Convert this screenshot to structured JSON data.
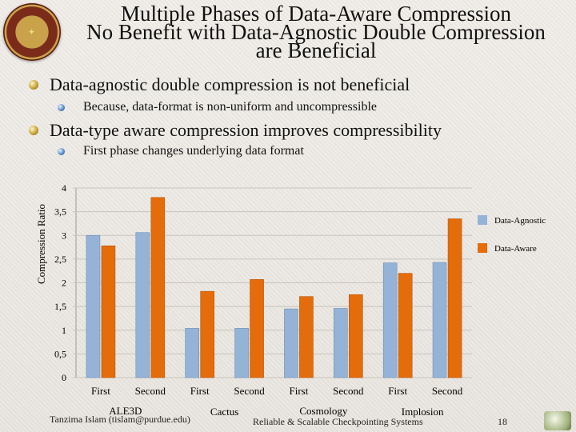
{
  "slide": {
    "title_lines": [
      "Multiple Phases of Data-Aware Compression",
      "No Benefit with Data-Agnostic Double Compression",
      "are Beneficial"
    ],
    "bullets": [
      {
        "text": "Data-agnostic double compression is not beneficial",
        "sub": "Because, data-format is non-uniform and uncompressible"
      },
      {
        "text": "Data-type aware compression improves compressibility",
        "sub": "First phase changes underlying data format"
      }
    ],
    "footer_author": "Tanzima Islam (tislam@purdue.edu)",
    "footer_center": "Reliable & Scalable Checkpointing Systems",
    "page_number": "18"
  },
  "chart_data": {
    "type": "bar",
    "ylabel": "Compression Ratio",
    "ylim": [
      0,
      4
    ],
    "yticks": [
      "0",
      "0,5",
      "1",
      "1,5",
      "2",
      "2,5",
      "3",
      "3,5",
      "4"
    ],
    "categories": [
      "First",
      "Second",
      "First",
      "Second",
      "First",
      "Second",
      "First",
      "Second"
    ],
    "groups": [
      "ALE3D",
      "Cactus",
      "Cosmology",
      "Implosion"
    ],
    "series": [
      {
        "name": "Data-Agnostic",
        "color": "#95b3d7",
        "values": [
          3.0,
          3.06,
          1.04,
          1.04,
          1.45,
          1.46,
          2.42,
          2.43
        ]
      },
      {
        "name": "Data-Aware",
        "color": "#e46c0a",
        "values": [
          2.78,
          3.8,
          1.82,
          2.07,
          1.71,
          1.75,
          2.2,
          3.35
        ]
      }
    ],
    "legend": "right"
  }
}
